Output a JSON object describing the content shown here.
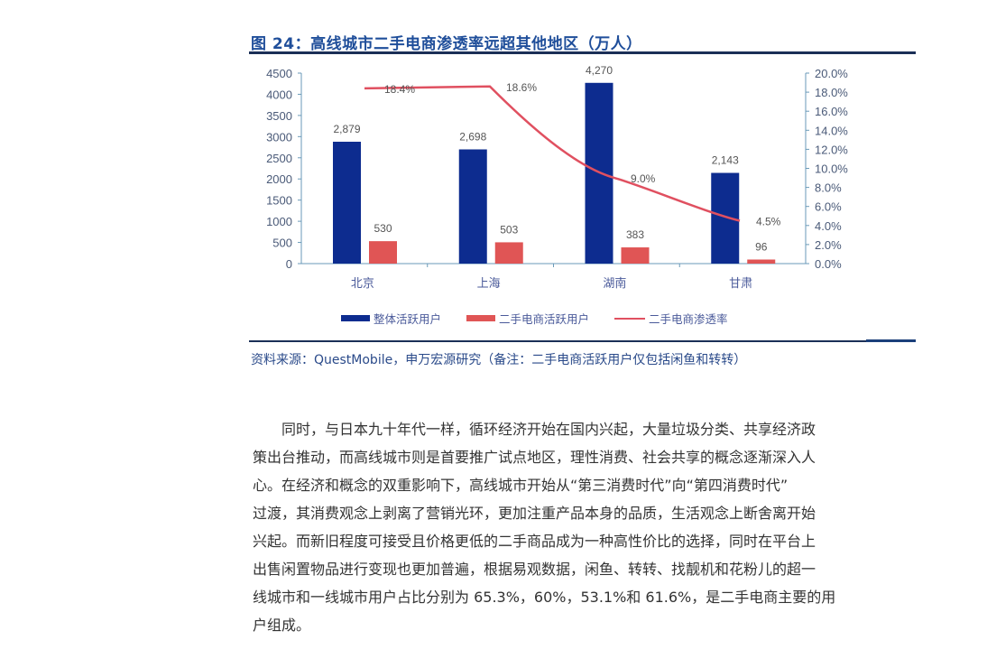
{
  "figure": {
    "title": "图 24：高线城市二手电商渗透率远超其他地区（万人）",
    "source": "资料来源：QuestMobile，申万宏源研究（备注：二手电商活跃用户仅包括闲鱼和转转）"
  },
  "legend": {
    "items": [
      {
        "label": "整体活跃用户",
        "color": "#0d2c8f",
        "type": "bar"
      },
      {
        "label": "二手电商活跃用户",
        "color": "#e05555",
        "type": "bar"
      },
      {
        "label": "二手电商渗透率",
        "color": "#e05060",
        "type": "line"
      }
    ]
  },
  "axes": {
    "left_ticks": [
      "4500",
      "4000",
      "3500",
      "3000",
      "2500",
      "2000",
      "1500",
      "1000",
      "500",
      "0"
    ],
    "right_ticks": [
      "20.0%",
      "18.0%",
      "16.0%",
      "14.0%",
      "12.0%",
      "10.0%",
      "8.0%",
      "6.0%",
      "4.0%",
      "2.0%",
      "0.0%"
    ]
  },
  "chart_data": {
    "type": "bar",
    "title": "图 24：高线城市二手电商渗透率远超其他地区（万人）",
    "categories": [
      "北京",
      "上海",
      "湖南",
      "甘肃"
    ],
    "series": [
      {
        "name": "整体活跃用户",
        "type": "bar",
        "axis": "left",
        "values": [
          2879,
          2698,
          4270,
          2143
        ],
        "labels": [
          "2,879",
          "2,698",
          "4,270",
          "2,143"
        ]
      },
      {
        "name": "二手电商活跃用户",
        "type": "bar",
        "axis": "left",
        "values": [
          530,
          503,
          383,
          96
        ],
        "labels": [
          "530",
          "503",
          "383",
          "96"
        ]
      },
      {
        "name": "二手电商渗透率",
        "type": "line",
        "axis": "right",
        "values": [
          18.4,
          18.6,
          9.0,
          4.5
        ],
        "labels": [
          "18.4%",
          "18.6%",
          "9.0%",
          "4.5%"
        ]
      }
    ],
    "xlabel": "",
    "ylabel": "万人",
    "ylim": [
      0,
      4500
    ],
    "y2lim": [
      0,
      20
    ],
    "grid": false,
    "legend_position": "bottom"
  },
  "body": {
    "lines": [
      "同时，与日本九十年代一样，循环经济开始在国内兴起，大量垃圾分类、共享经济政",
      "策出台推动，而高线城市则是首要推广试点地区，理性消费、社会共享的概念逐渐深入人",
      "心。在经济和概念的双重影响下，高线城市开始从“第三消费时代”向“第四消费时代”",
      "过渡，其消费观念上剥离了营销光环，更加注重产品本身的品质，生活观念上断舍离开始",
      "兴起。而新旧程度可接受且价格更低的二手商品成为一种高性价比的选择，同时在平台上",
      "出售闲置物品进行变现也更加普遍，根据易观数据，闲鱼、转转、找靓机和花粉儿的超一",
      "线城市和一线城市用户占比分别为 65.3%，60%，53.1%和 61.6%，是二手电商主要的用",
      "户组成。"
    ]
  }
}
